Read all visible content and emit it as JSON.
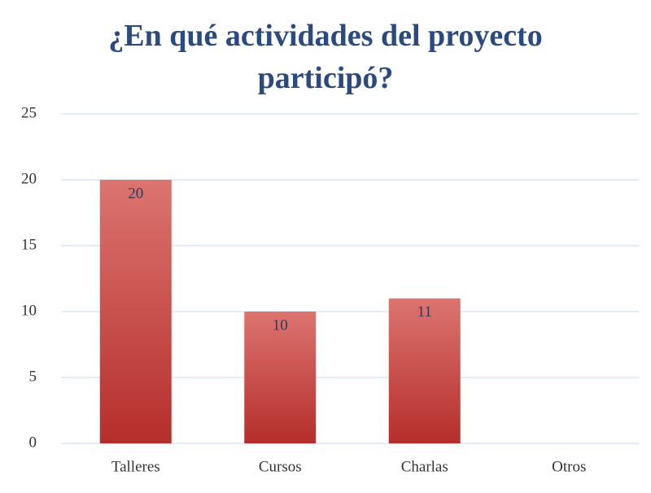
{
  "chart_data": {
    "type": "bar",
    "title": "¿En qué actividades del proyecto participó?",
    "categories": [
      "Talleres",
      "Cursos",
      "Charlas",
      "Otros"
    ],
    "values": [
      20,
      10,
      11,
      0
    ],
    "value_labels": [
      "20",
      "10",
      "11",
      null
    ],
    "color": "#c0403c",
    "ylim": [
      0,
      25
    ],
    "yticks": [
      0,
      5,
      10,
      15,
      20,
      25
    ],
    "grid": true
  }
}
